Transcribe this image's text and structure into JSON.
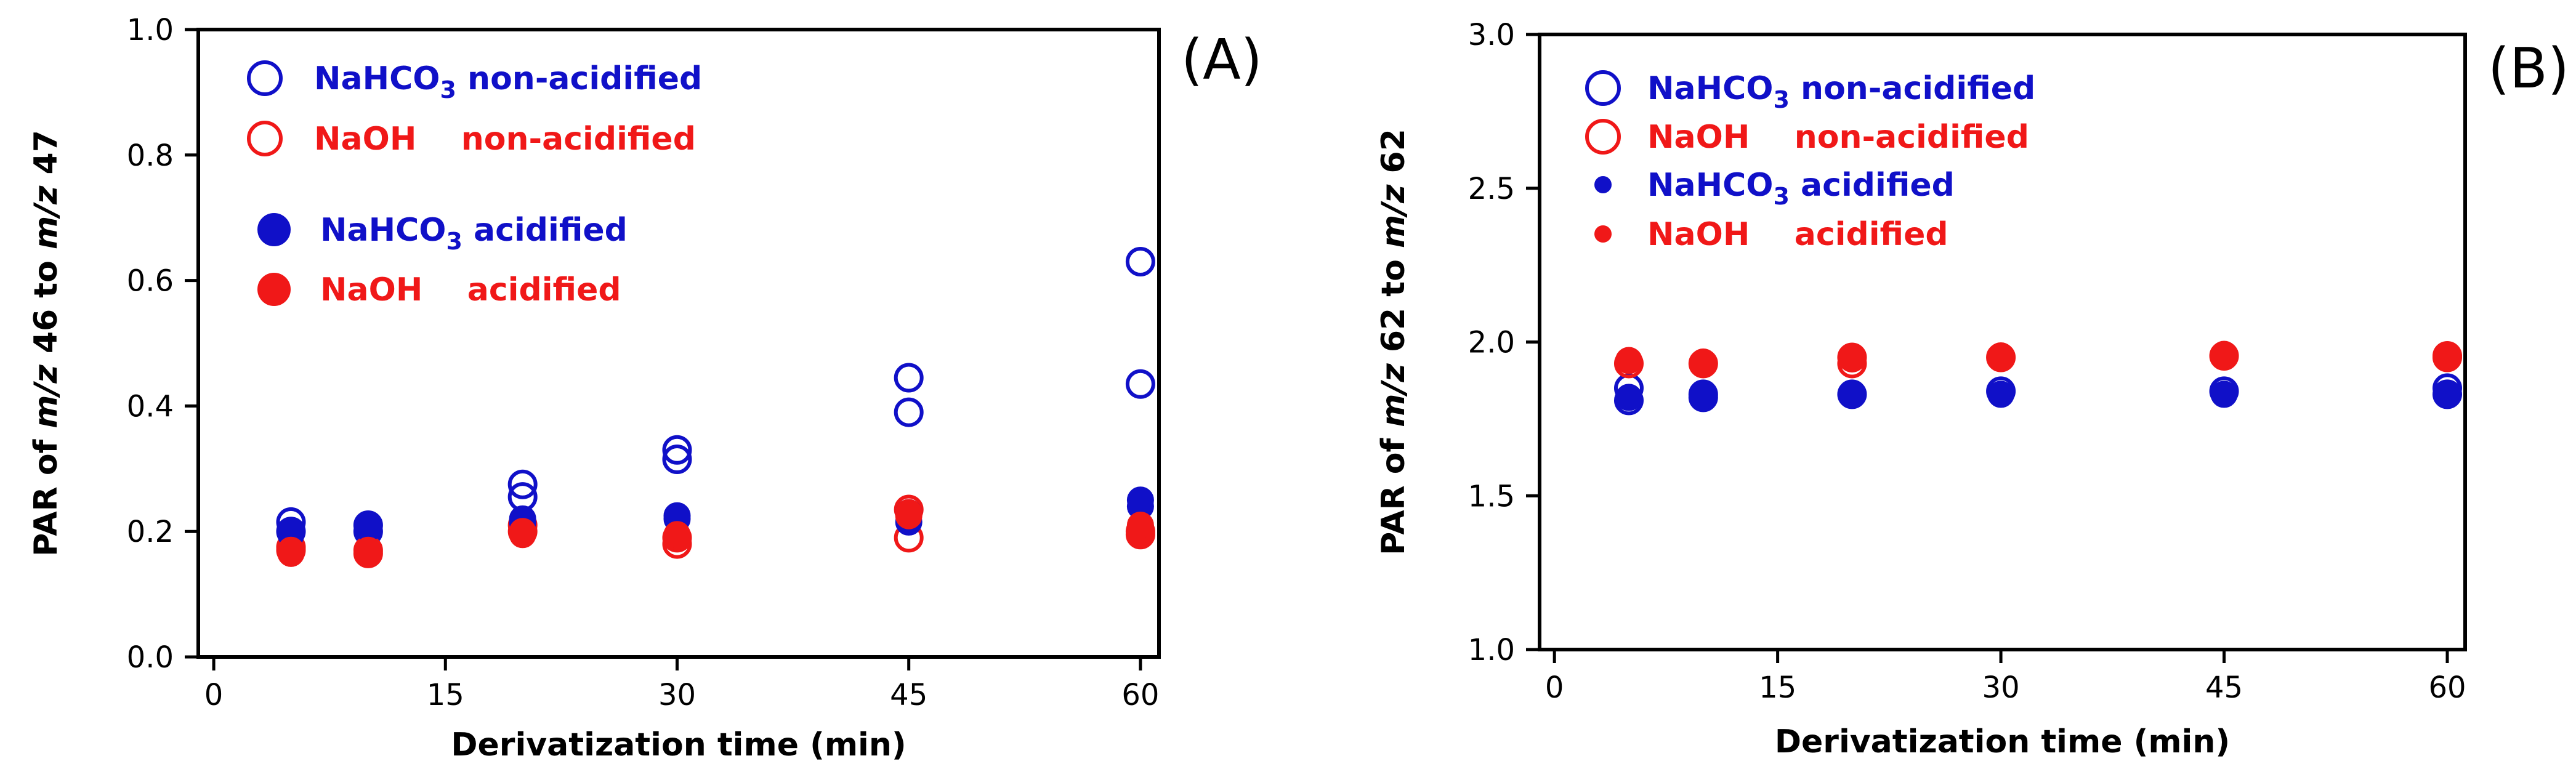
{
  "chart_data": [
    {
      "type": "scatter",
      "panel_label": "(A)",
      "xlabel": "Derivatization time (min)",
      "ylabel": {
        "pre": "PAR of ",
        "i1": "m/z",
        "mid": " 46 to ",
        "i2": "m/z",
        "post": " 47"
      },
      "xlim": [
        -1,
        61.2
      ],
      "ylim": [
        0,
        1.0
      ],
      "xticks": [
        0,
        15,
        30,
        45,
        60
      ],
      "yticks": [
        0.0,
        0.2,
        0.4,
        0.6,
        0.8,
        1.0
      ],
      "yticks_labels": [
        "0.0",
        "0.2",
        "0.4",
        "0.6",
        "0.8",
        "1.0"
      ],
      "series": [
        {
          "name": "NaHCO3 non-acidified",
          "label_main": "NaHCO",
          "label_sub": "3",
          "label_rest": " non-acidified",
          "color": "#1010c8",
          "filled": false,
          "x": [
            5,
            5,
            10,
            10,
            20,
            20,
            30,
            30,
            45,
            45,
            60,
            60
          ],
          "y": [
            0.215,
            0.2,
            0.2,
            0.21,
            0.255,
            0.275,
            0.315,
            0.33,
            0.39,
            0.445,
            0.435,
            0.63
          ]
        },
        {
          "name": "NaOH non-acidified",
          "label_main": "NaOH",
          "label_sub": "",
          "label_rest": "    non-acidified",
          "color": "#f01818",
          "filled": false,
          "x": [
            5,
            5,
            10,
            10,
            20,
            20,
            30,
            30,
            45,
            45,
            60,
            60
          ],
          "y": [
            0.17,
            0.175,
            0.165,
            0.17,
            0.2,
            0.21,
            0.18,
            0.19,
            0.19,
            0.235,
            0.195,
            0.2
          ]
        },
        {
          "name": "NaHCO3 acidified",
          "label_main": "NaHCO",
          "label_sub": "3",
          "label_rest": " acidified",
          "color": "#1010c8",
          "filled": true,
          "x": [
            5,
            5,
            10,
            10,
            20,
            20,
            30,
            30,
            45,
            45,
            60,
            60
          ],
          "y": [
            0.195,
            0.2,
            0.205,
            0.21,
            0.215,
            0.22,
            0.22,
            0.225,
            0.215,
            0.23,
            0.24,
            0.25
          ]
        },
        {
          "name": "NaOH acidified",
          "label_main": "NaOH",
          "label_sub": "",
          "label_rest": "    acidified",
          "color": "#f01818",
          "filled": true,
          "x": [
            5,
            5,
            10,
            10,
            20,
            20,
            30,
            30,
            45,
            45,
            60,
            60
          ],
          "y": [
            0.165,
            0.17,
            0.165,
            0.17,
            0.195,
            0.2,
            0.19,
            0.195,
            0.225,
            0.23,
            0.2,
            0.21
          ]
        }
      ]
    },
    {
      "type": "scatter",
      "panel_label": "(B)",
      "xlabel": "Derivatization time (min)",
      "ylabel": {
        "pre": "PAR of ",
        "i1": "m/z",
        "mid": " 62 to ",
        "i2": "m/z",
        "post": " 62"
      },
      "xlim": [
        -1,
        61.2
      ],
      "ylim": [
        1.0,
        3.0
      ],
      "xticks": [
        0,
        15,
        30,
        45,
        60
      ],
      "yticks": [
        1.0,
        1.5,
        2.0,
        2.5,
        3.0
      ],
      "yticks_labels": [
        "1.0",
        "1.5",
        "2.0",
        "2.5",
        "3.0"
      ],
      "series": [
        {
          "name": "NaHCO3 non-acidified",
          "label_main": "NaHCO",
          "label_sub": "3",
          "label_rest": " non-acidified",
          "color": "#1010c8",
          "filled": false,
          "x": [
            5,
            5,
            10,
            10,
            20,
            30,
            45,
            60,
            60
          ],
          "y": [
            1.81,
            1.85,
            1.82,
            1.83,
            1.83,
            1.84,
            1.84,
            1.83,
            1.85
          ]
        },
        {
          "name": "NaOH non-acidified",
          "label_main": "NaOH",
          "label_sub": "",
          "label_rest": "    non-acidified",
          "color": "#f01818",
          "filled": false,
          "x": [
            5,
            10,
            20,
            20,
            30,
            45,
            60,
            60
          ],
          "y": [
            1.93,
            1.93,
            1.93,
            1.95,
            1.95,
            1.955,
            1.95,
            1.955
          ]
        },
        {
          "name": "NaHCO3 acidified",
          "label_main": "NaHCO",
          "label_sub": "3",
          "label_rest": " acidified",
          "color": "#1010c8",
          "filled": true,
          "x": [
            5,
            10,
            20,
            30,
            45,
            60
          ],
          "y": [
            1.82,
            1.82,
            1.83,
            1.83,
            1.83,
            1.83
          ]
        },
        {
          "name": "NaOH acidified",
          "label_main": "NaOH",
          "label_sub": "",
          "label_rest": "    acidified",
          "color": "#f01818",
          "filled": true,
          "x": [
            5,
            10,
            20,
            30,
            45,
            60
          ],
          "y": [
            1.94,
            1.935,
            1.945,
            1.955,
            1.96,
            1.955
          ]
        }
      ]
    }
  ]
}
